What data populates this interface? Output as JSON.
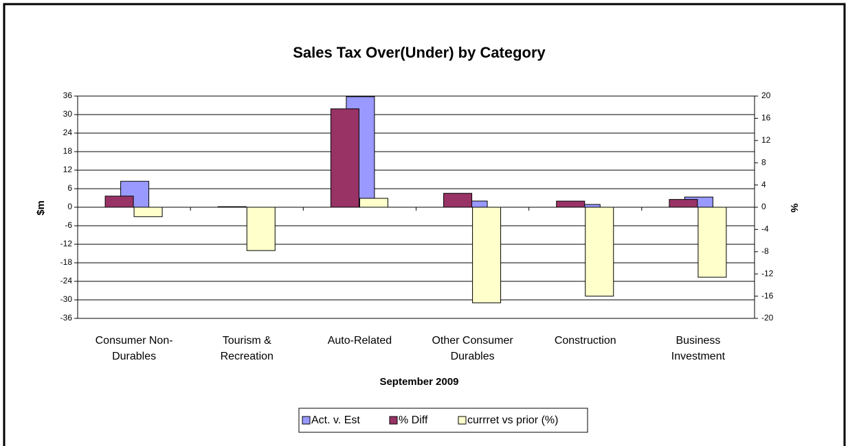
{
  "chart_data": {
    "type": "bar",
    "title": "Sales Tax Over(Under) by Category",
    "x_label": "September 2009",
    "y_label": "$m",
    "y2_label": "%",
    "categories": [
      "Consumer Non-\nDurables",
      "Tourism &\nRecreation",
      "Auto-Related",
      "Other Consumer\nDurables",
      "Construction",
      "Business\nInvestment"
    ],
    "series": [
      {
        "name": "Act. v. Est",
        "color": "#9999ff",
        "values": [
          8.4,
          0.0,
          35.8,
          2.0,
          0.9,
          3.3
        ]
      },
      {
        "name": "% Diff",
        "color": "#993366",
        "axis": "y2",
        "values": [
          2.0,
          0.1,
          17.7,
          2.5,
          1.1,
          1.4
        ]
      },
      {
        "name": "currret vs prior (%)",
        "color": "#ffffcc",
        "axis": "y2",
        "values": [
          -1.7,
          -7.8,
          1.6,
          -17.2,
          -16.0,
          -12.6
        ]
      }
    ],
    "ylim": [
      -36,
      36
    ],
    "yticks": [
      -36,
      -30,
      -24,
      -18,
      -12,
      -6,
      0,
      6,
      12,
      18,
      24,
      30,
      36
    ],
    "y2lim": [
      -20,
      20
    ],
    "y2ticks": [
      -20,
      -16,
      -12,
      -8,
      -4,
      0,
      4,
      8,
      12,
      16,
      20
    ],
    "grid": true,
    "legend": "bottom"
  }
}
